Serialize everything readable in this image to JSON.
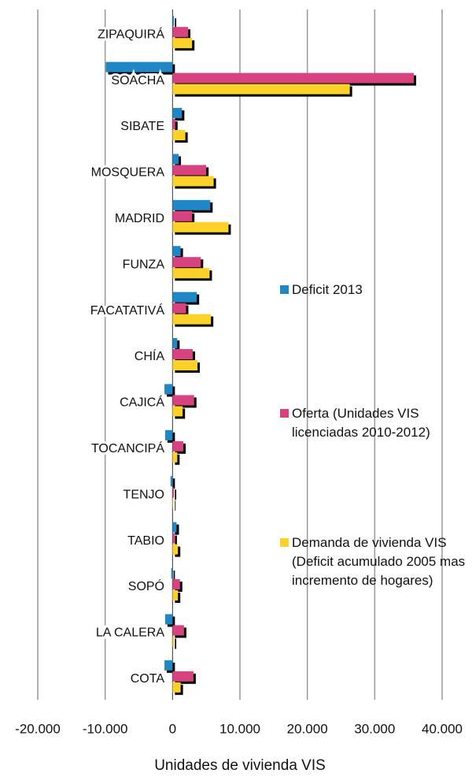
{
  "chart_data": {
    "type": "hbar",
    "x_label": "Unidades de vivienda VIS",
    "categories": [
      "ZIPAQUIRÁ",
      "SOACHA",
      "SIBATE",
      "MOSQUERA",
      "MADRID",
      "FUNZA",
      "FACATATIVÁ",
      "CHÍA",
      "CAJICÁ",
      "TOCANCIPÁ",
      "TENJO",
      "TABIO",
      "SOPÓ",
      "LA CALERA",
      "COTA"
    ],
    "series": [
      {
        "name": "Deficit 2013",
        "color": "#1f87c6",
        "values": [
          200,
          -9900,
          1400,
          900,
          5600,
          1200,
          3600,
          700,
          -1200,
          -1100,
          -300,
          600,
          -200,
          -1100,
          -1200
        ]
      },
      {
        "name": "Oferta (Unidades VIS licenciadas 2010-2012)",
        "color": "#d6437e",
        "values": [
          2300,
          35800,
          400,
          5000,
          2900,
          4200,
          2000,
          3000,
          3200,
          1600,
          200,
          300,
          1100,
          1700,
          3100
        ]
      },
      {
        "name": "Demanda de vivienda VIS (Deficit acumulado 2005 mas incremento de hogares)",
        "color": "#fcd12a",
        "values": [
          2900,
          26300,
          1900,
          6100,
          8300,
          5500,
          5700,
          3700,
          1500,
          700,
          100,
          800,
          800,
          200,
          1200
        ]
      }
    ],
    "xlim": [
      -20000,
      40000
    ],
    "xticks": [
      {
        "value": -20000,
        "label": "-20.000"
      },
      {
        "value": -10000,
        "label": "-10.000"
      },
      0,
      {
        "value": 10000,
        "label": "10.000"
      },
      {
        "value": 20000,
        "label": "20.000"
      },
      {
        "value": 30000,
        "label": "30.000"
      },
      {
        "value": 40000,
        "label": "40.000"
      }
    ],
    "grid": true
  }
}
